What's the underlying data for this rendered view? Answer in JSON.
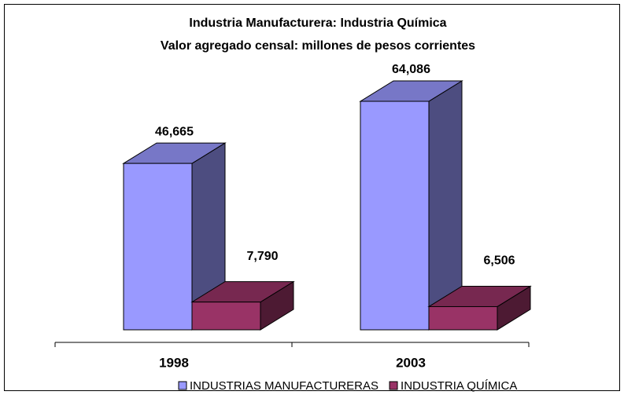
{
  "chart_data": {
    "type": "bar3d",
    "title": [
      "Industria Manufacturera: Industria Química",
      "Valor agregado censal: millones de pesos corrientes"
    ],
    "categories": [
      "1998",
      "2003"
    ],
    "series": [
      {
        "name": "INDUSTRIAS MANUFACTURERAS",
        "color": "#9999ff",
        "values": [
          46665,
          64086
        ],
        "value_labels": [
          "46,665",
          "64,086"
        ]
      },
      {
        "name": "INDUSTRIA QUÍMICA",
        "color": "#993366",
        "values": [
          7790,
          6506
        ],
        "value_labels": [
          "7,790",
          "6,506"
        ]
      }
    ],
    "legend": "bottom"
  }
}
